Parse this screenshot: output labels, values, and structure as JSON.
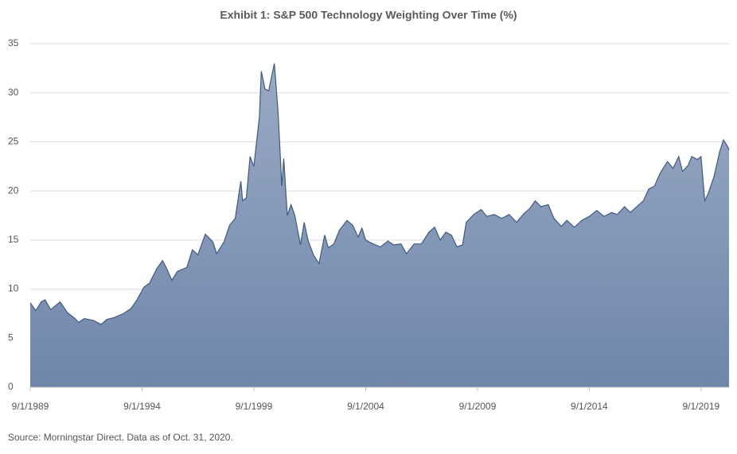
{
  "chart_data": {
    "type": "area",
    "title": "Exhibit 1: S&P 500 Technology Weighting Over Time (%)",
    "source": "Source: Morningstar Direct. Data as of Oct. 31, 2020.",
    "x": [
      "9/1/1989",
      "12/1/1989",
      "3/1/1990",
      "5/1/1990",
      "8/1/1990",
      "1/1/1991",
      "5/1/1991",
      "9/1/1991",
      "11/1/1991",
      "2/1/1992",
      "7/1/1992",
      "11/1/1992",
      "2/1/1993",
      "6/1/1993",
      "11/1/1993",
      "3/1/1994",
      "6/1/1994",
      "10/1/1994",
      "1/1/1995",
      "5/1/1995",
      "8/1/1995",
      "10/1/1995",
      "1/1/1996",
      "4/1/1996",
      "9/1/1996",
      "12/1/1996",
      "3/1/1997",
      "7/1/1997",
      "11/1/1997",
      "1/1/1998",
      "5/1/1998",
      "8/1/1998",
      "11/1/1998",
      "2/1/1999",
      "3/1/1999",
      "5/1/1999",
      "7/1/1999",
      "9/1/1999",
      "12/1/1999",
      "1/1/2000",
      "3/1/2000",
      "5/1/2000",
      "8/1/2000",
      "10/1/2000",
      "12/1/2000",
      "1/1/2001",
      "3/1/2001",
      "5/1/2001",
      "7/1/2001",
      "10/1/2001",
      "12/1/2001",
      "2/1/2002",
      "5/1/2002",
      "8/1/2002",
      "11/1/2002",
      "1/1/2003",
      "4/1/2003",
      "7/1/2003",
      "11/1/2003",
      "2/1/2004",
      "5/1/2004",
      "7/1/2004",
      "9/1/2004",
      "1/1/2005",
      "5/1/2005",
      "9/1/2005",
      "12/1/2005",
      "4/1/2006",
      "7/1/2006",
      "11/1/2006",
      "3/1/2007",
      "7/1/2007",
      "10/1/2007",
      "1/1/2008",
      "4/1/2008",
      "7/1/2008",
      "10/1/2008",
      "1/1/2009",
      "3/1/2009",
      "7/1/2009",
      "11/1/2009",
      "2/1/2010",
      "6/1/2010",
      "10/1/2010",
      "2/1/2011",
      "6/1/2011",
      "10/1/2011",
      "1/1/2012",
      "4/1/2012",
      "7/1/2012",
      "11/1/2012",
      "2/1/2013",
      "6/1/2013",
      "9/1/2013",
      "1/1/2014",
      "5/1/2014",
      "9/1/2014",
      "1/1/2015",
      "5/1/2015",
      "9/1/2015",
      "12/1/2015",
      "4/1/2016",
      "7/1/2016",
      "10/1/2016",
      "2/1/2017",
      "5/1/2017",
      "8/1/2017",
      "11/1/2017",
      "3/1/2018",
      "6/1/2018",
      "9/1/2018",
      "11/1/2018",
      "2/1/2019",
      "4/1/2019",
      "7/1/2019",
      "9/1/2019",
      "11/1/2019",
      "1/1/2020",
      "4/1/2020",
      "7/1/2020",
      "9/1/2020",
      "11/1/2020",
      "12/1/2020"
    ],
    "series": [
      {
        "name": "S&P 500 Technology Weighting",
        "color": "#3f5a82",
        "fill": "#8b9dbb",
        "values": [
          8.6,
          7.8,
          8.7,
          8.9,
          7.9,
          8.7,
          7.6,
          7.0,
          6.6,
          7.0,
          6.8,
          6.4,
          6.9,
          7.1,
          7.5,
          8.0,
          8.8,
          10.2,
          10.6,
          12.1,
          12.9,
          12.2,
          10.9,
          11.8,
          12.2,
          14.0,
          13.5,
          15.6,
          14.8,
          13.6,
          14.8,
          16.5,
          17.2,
          21.0,
          19.0,
          19.3,
          23.5,
          22.5,
          27.5,
          32.2,
          30.4,
          30.2,
          33.0,
          28.0,
          20.5,
          23.3,
          17.5,
          18.6,
          17.5,
          14.5,
          16.8,
          15.0,
          13.5,
          12.6,
          15.5,
          14.2,
          14.6,
          16.0,
          17.0,
          16.5,
          15.3,
          16.2,
          15.0,
          14.6,
          14.3,
          14.9,
          14.5,
          14.6,
          13.6,
          14.6,
          14.6,
          15.8,
          16.3,
          15.0,
          15.8,
          15.5,
          14.3,
          14.5,
          16.8,
          17.6,
          18.1,
          17.4,
          17.6,
          17.2,
          17.6,
          16.8,
          17.7,
          18.2,
          19.0,
          18.4,
          18.6,
          17.2,
          16.4,
          17.0,
          16.3,
          17.0,
          17.4,
          18.0,
          17.4,
          17.8,
          17.6,
          18.4,
          17.8,
          18.3,
          19.0,
          20.2,
          20.5,
          21.8,
          23.0,
          22.3,
          23.5,
          22.0,
          22.6,
          23.5,
          23.2,
          23.5,
          19.0,
          19.8,
          21.5,
          24.0,
          25.2,
          24.6,
          24.2
        ]
      }
    ],
    "xlim": [
      "9/1/1989",
      "12/1/2020"
    ],
    "xticks": [
      "9/1/1989",
      "9/1/1994",
      "9/1/1999",
      "9/1/2004",
      "9/1/2009",
      "9/1/2014",
      "9/1/2019"
    ],
    "ylim": [
      0,
      35
    ],
    "yticks": [
      0,
      5,
      10,
      15,
      20,
      25,
      30,
      35
    ],
    "grid": true
  }
}
